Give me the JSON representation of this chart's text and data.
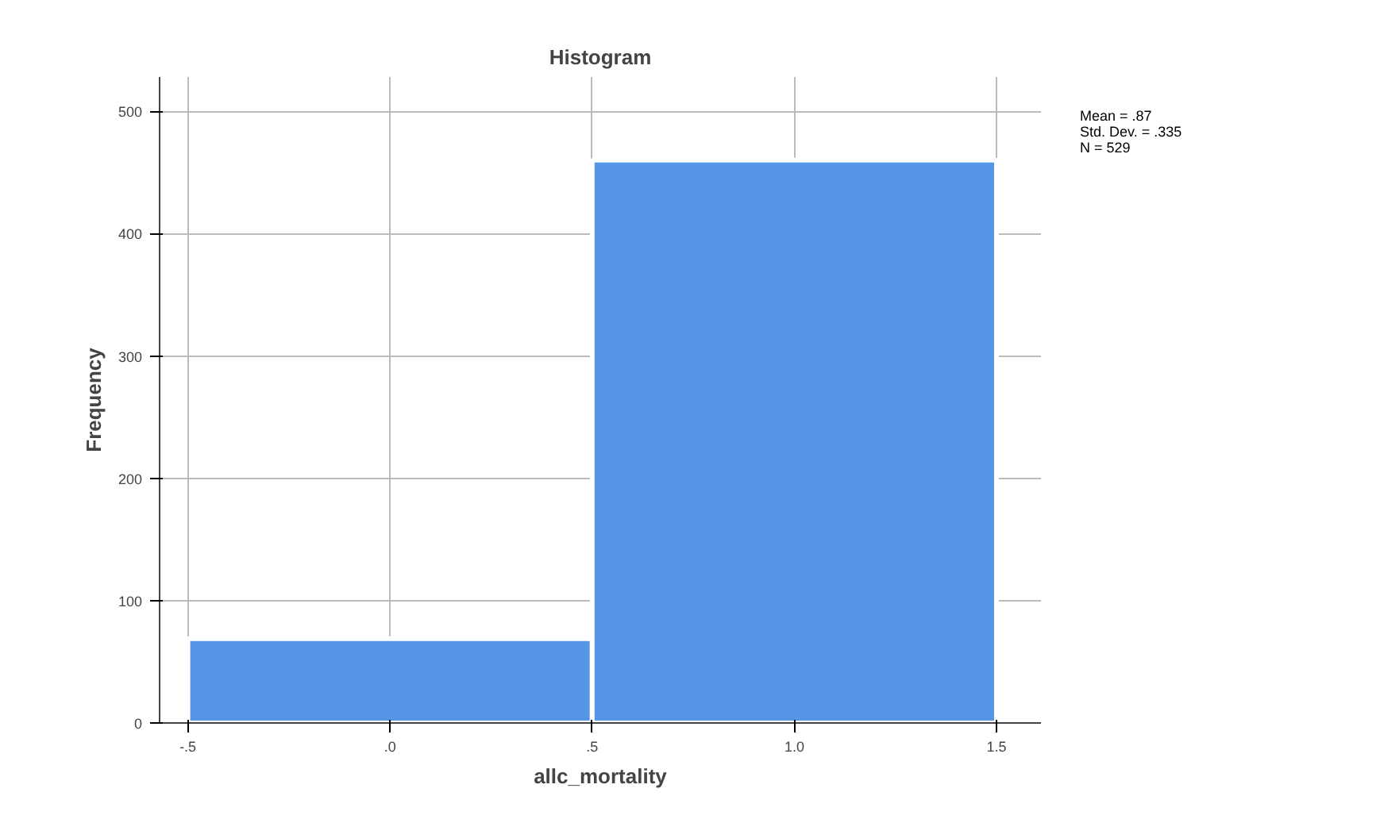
{
  "chart_data": {
    "type": "histogram",
    "title": "Histogram",
    "xlabel": "allc_mortality",
    "ylabel": "Frequency",
    "bins": [
      -0.5,
      0.5,
      1.5
    ],
    "values": [
      69,
      460
    ],
    "color": "#5596e6",
    "xlim": [
      -0.57,
      1.61
    ],
    "ylim": [
      0,
      528
    ],
    "xticks": [
      {
        "value": -0.5,
        "label": "-.5"
      },
      {
        "value": 0,
        "label": ".0"
      },
      {
        "value": 0.5,
        "label": ".5"
      },
      {
        "value": 1,
        "label": "1.0"
      },
      {
        "value": 1.5,
        "label": "1.5"
      }
    ],
    "yticks": [
      0,
      100,
      200,
      300,
      400,
      500
    ],
    "grid": true,
    "annotations": [
      "Mean = .87",
      "Std. Dev. = .335",
      "N = 529"
    ]
  }
}
